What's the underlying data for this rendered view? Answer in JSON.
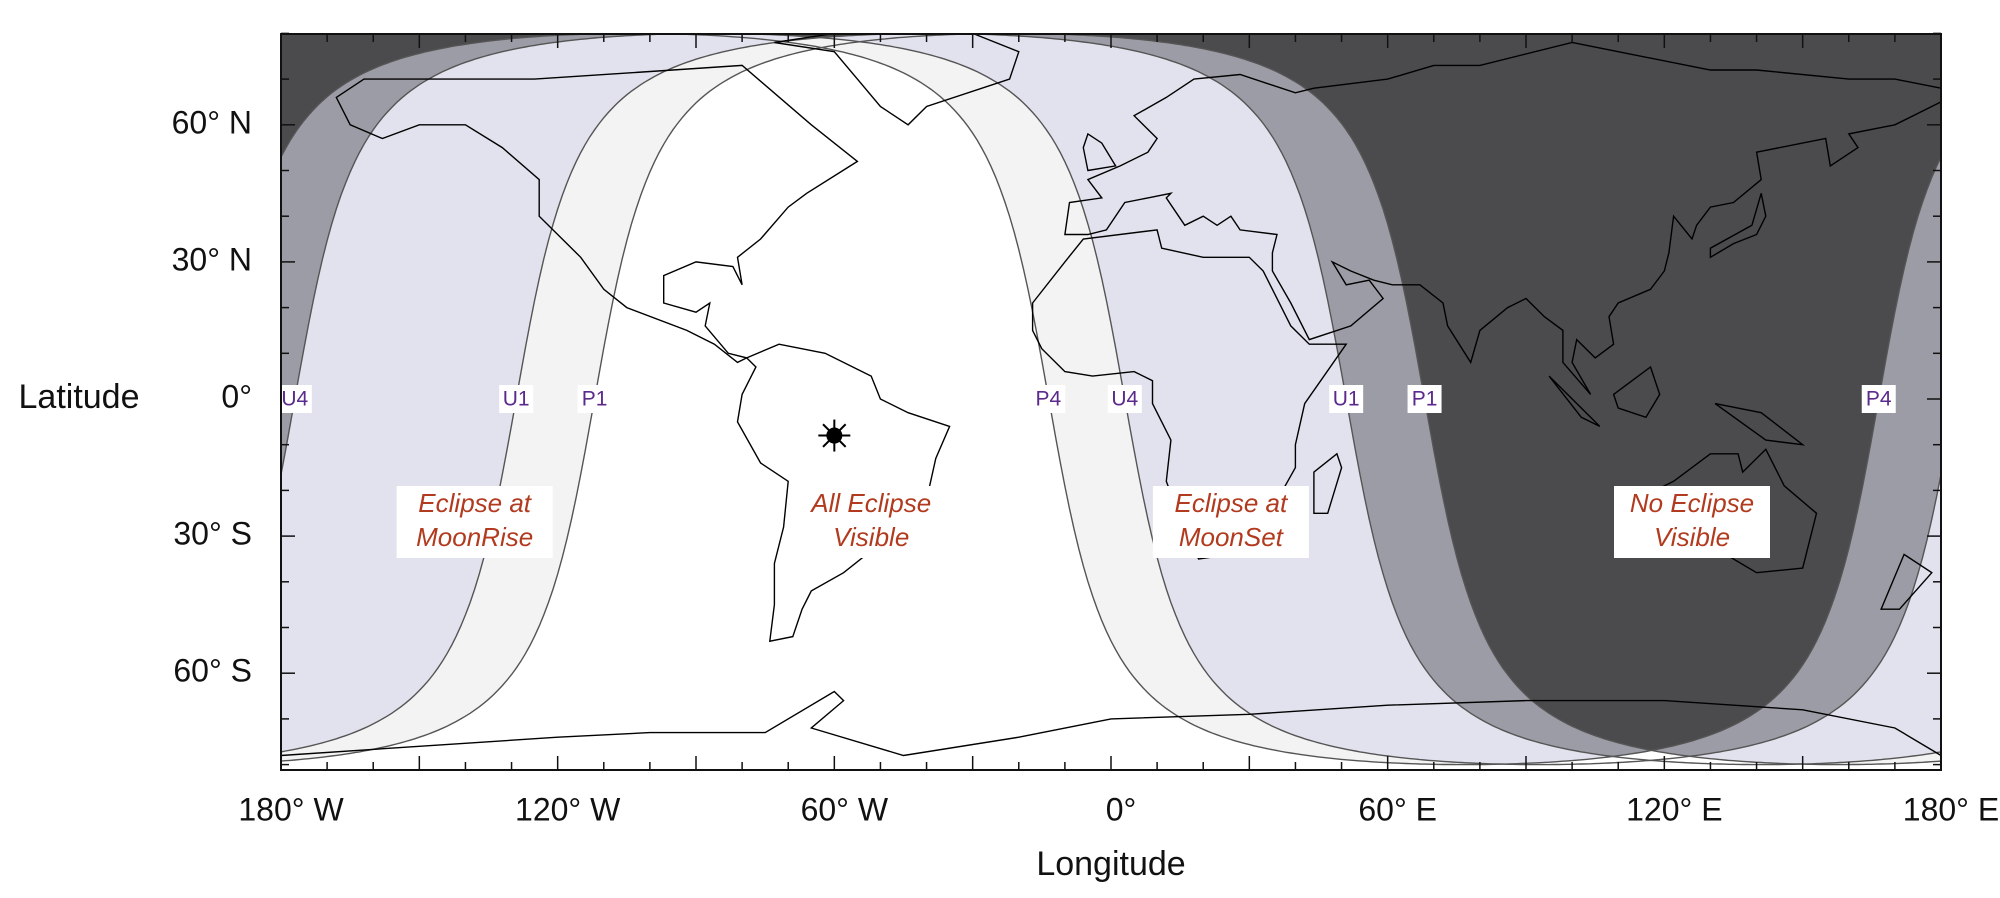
{
  "axes": {
    "y_label": "Latitude",
    "x_label": "Longitude",
    "lat_ticks": [
      "60° N",
      "30° N",
      "0°",
      "30° S",
      "60° S"
    ],
    "lon_ticks": [
      "180° W",
      "120° W",
      "60° W",
      "0°",
      "60° E",
      "120° E",
      "180° E"
    ]
  },
  "contact_labels": [
    "U4",
    "U1",
    "P1",
    "P4",
    "U4",
    "U1",
    "P1",
    "P4"
  ],
  "regions": [
    [
      "Eclipse at",
      "MoonRise"
    ],
    [
      "All Eclipse",
      "Visible"
    ],
    [
      "Eclipse at",
      "MoonSet"
    ],
    [
      "No Eclipse",
      "Visible"
    ]
  ]
}
